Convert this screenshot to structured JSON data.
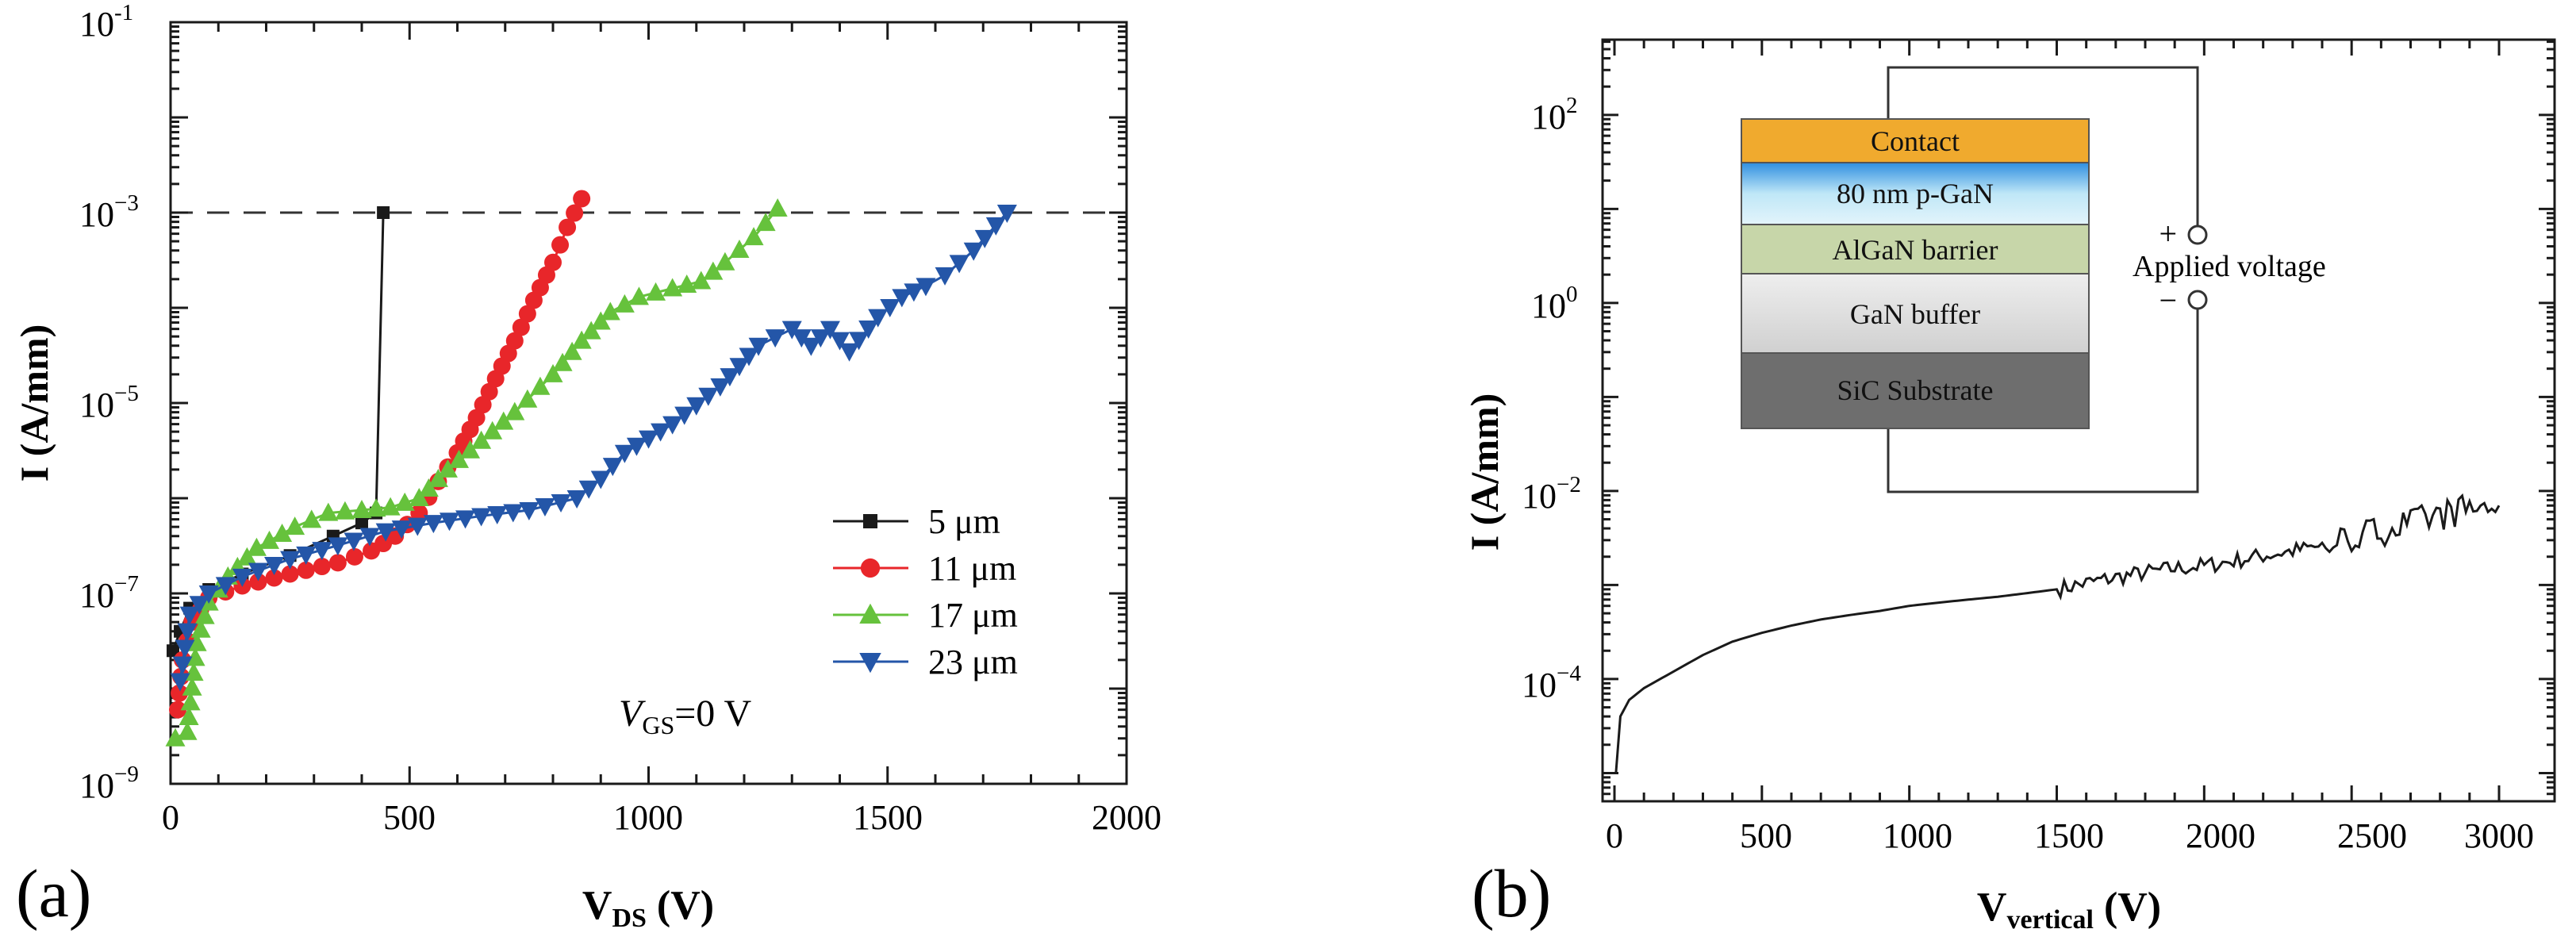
{
  "chart_data": [
    {
      "panel": "(a)",
      "type": "line",
      "xlabel_main": "V",
      "xlabel_sub": "DS",
      "xlabel_unit": " (V)",
      "ylabel": "I (A/mm)",
      "xlim": [
        0,
        2000
      ],
      "ylim_exp": [
        -9,
        -1
      ],
      "yscale": "log",
      "x_ticks": [
        "0",
        "500",
        "1000",
        "1500",
        "2000"
      ],
      "y_ticks": [
        {
          "exp": -1,
          "base": "10",
          "sup": "-1"
        },
        {
          "exp": -3,
          "base": "10",
          "sup": "−3"
        },
        {
          "exp": -5,
          "base": "10",
          "sup": "−5"
        },
        {
          "exp": -7,
          "base": "10",
          "sup": "−7"
        },
        {
          "exp": -9,
          "base": "10",
          "sup": "−9"
        }
      ],
      "reference_line": {
        "y": 0.001,
        "style": "dashed"
      },
      "annotation": {
        "var": "V",
        "sub": "GS",
        "rest": "=0 V"
      },
      "legend_position": "bottom-right",
      "series": [
        {
          "name": "5 μm",
          "color": "#1a1a1a",
          "marker": "square",
          "points": [
            [
              5,
              2.5e-08
            ],
            [
              20,
              4e-08
            ],
            [
              40,
              7e-08
            ],
            [
              80,
              1.1e-07
            ],
            [
              150,
              1.6e-07
            ],
            [
              250,
              2.5e-07
            ],
            [
              340,
              4e-07
            ],
            [
              400,
              5.5e-07
            ],
            [
              430,
              7e-07
            ],
            [
              445,
              0.001
            ]
          ]
        },
        {
          "name": "11 μm",
          "color": "#e8262a",
          "marker": "circle",
          "points": [
            [
              15,
              6e-09
            ],
            [
              25,
              2e-08
            ],
            [
              45,
              5e-08
            ],
            [
              80,
              9e-08
            ],
            [
              150,
              1.2e-07
            ],
            [
              250,
              1.6e-07
            ],
            [
              350,
              2.1e-07
            ],
            [
              420,
              2.8e-07
            ],
            [
              470,
              4e-07
            ],
            [
              520,
              7e-07
            ],
            [
              560,
              1.5e-06
            ],
            [
              600,
              3e-06
            ],
            [
              640,
              7e-06
            ],
            [
              680,
              1.8e-05
            ],
            [
              720,
              4.5e-05
            ],
            [
              760,
              0.00012
            ],
            [
              800,
              0.0003
            ],
            [
              830,
              0.0007
            ],
            [
              860,
              0.0014
            ]
          ]
        },
        {
          "name": "17 μm",
          "color": "#66c23c",
          "marker": "triangle-up",
          "points": [
            [
              10,
              3e-09
            ],
            [
              35,
              3.5e-09
            ],
            [
              55,
              3e-08
            ],
            [
              80,
              8e-08
            ],
            [
              120,
              1.5e-07
            ],
            [
              180,
              3e-07
            ],
            [
              260,
              5e-07
            ],
            [
              330,
              7e-07
            ],
            [
              400,
              7.5e-07
            ],
            [
              460,
              8e-07
            ],
            [
              520,
              1e-06
            ],
            [
              580,
              2e-06
            ],
            [
              650,
              4e-06
            ],
            [
              720,
              8e-06
            ],
            [
              800,
              2e-05
            ],
            [
              860,
              4.5e-05
            ],
            [
              920,
              9e-05
            ],
            [
              980,
              0.00013
            ],
            [
              1050,
              0.00016
            ],
            [
              1110,
              0.00019
            ],
            [
              1160,
              0.0003
            ],
            [
              1220,
              0.00055
            ],
            [
              1270,
              0.0011
            ]
          ]
        },
        {
          "name": "23 μm",
          "color": "#2456a8",
          "marker": "triangle-down",
          "points": [
            [
              20,
              1.2e-08
            ],
            [
              40,
              6e-08
            ],
            [
              80,
              1e-07
            ],
            [
              150,
              1.5e-07
            ],
            [
              250,
              2.3e-07
            ],
            [
              350,
              3.2e-07
            ],
            [
              450,
              4.5e-07
            ],
            [
              550,
              5.5e-07
            ],
            [
              650,
              6.5e-07
            ],
            [
              750,
              7.5e-07
            ],
            [
              850,
              1e-06
            ],
            [
              900,
              1.6e-06
            ],
            [
              950,
              3e-06
            ],
            [
              1050,
              6e-06
            ],
            [
              1150,
              1.5e-05
            ],
            [
              1230,
              4e-05
            ],
            [
              1300,
              6e-05
            ],
            [
              1340,
              4e-05
            ],
            [
              1380,
              6e-05
            ],
            [
              1420,
              3.5e-05
            ],
            [
              1480,
              8e-05
            ],
            [
              1530,
              0.00013
            ],
            [
              1580,
              0.00017
            ],
            [
              1620,
              0.00022
            ],
            [
              1680,
              0.0004
            ],
            [
              1750,
              0.001
            ]
          ]
        }
      ]
    },
    {
      "panel": "(b)",
      "type": "line",
      "xlabel_main": "V",
      "xlabel_sub": "vertical",
      "xlabel_unit": " (V)",
      "ylabel": "I (A/mm)",
      "xlim": [
        0,
        3000
      ],
      "ylim_exp": [
        -5.3,
        2.8
      ],
      "yscale": "log",
      "x_ticks": [
        "0",
        "500",
        "1000",
        "1500",
        "2000",
        "2500",
        "3000"
      ],
      "y_ticks": [
        {
          "exp": 2,
          "base": "10",
          "sup": "2"
        },
        {
          "exp": 0,
          "base": "10",
          "sup": "0"
        },
        {
          "exp": -2,
          "base": "10",
          "sup": "−2"
        },
        {
          "exp": -4,
          "base": "10",
          "sup": "−4"
        }
      ],
      "series": [
        {
          "name": "",
          "color": "#1a1a1a",
          "points": [
            [
              5,
              1e-05
            ],
            [
              20,
              4e-05
            ],
            [
              50,
              6e-05
            ],
            [
              100,
              8e-05
            ],
            [
              200,
              0.00012
            ],
            [
              300,
              0.00018
            ],
            [
              400,
              0.00025
            ],
            [
              500,
              0.00031
            ],
            [
              600,
              0.00037
            ],
            [
              700,
              0.00043
            ],
            [
              800,
              0.00048
            ],
            [
              900,
              0.00053
            ],
            [
              1000,
              0.0006
            ],
            [
              1100,
              0.00065
            ],
            [
              1200,
              0.0007
            ],
            [
              1300,
              0.00075
            ],
            [
              1400,
              0.00082
            ],
            [
              1500,
              0.0009
            ],
            [
              1600,
              0.00105
            ],
            [
              1700,
              0.0012
            ],
            [
              1800,
              0.00135
            ],
            [
              1900,
              0.0015
            ],
            [
              2000,
              0.0016
            ],
            [
              2100,
              0.0018
            ],
            [
              2200,
              0.00205
            ],
            [
              2300,
              0.0023
            ],
            [
              2400,
              0.0026
            ],
            [
              2500,
              0.0032
            ],
            [
              2600,
              0.0038
            ],
            [
              2700,
              0.0045
            ],
            [
              2800,
              0.0055
            ],
            [
              2900,
              0.0065
            ],
            [
              3000,
              0.007
            ]
          ]
        }
      ],
      "inset": {
        "layers": [
          {
            "label": "Contact",
            "color": "#f0aa2e"
          },
          {
            "label": "80 nm p-GaN",
            "color": "gradient-blue"
          },
          {
            "label": "AlGaN barrier",
            "color": "#c7d6a9"
          },
          {
            "label": "GaN buffer",
            "color": "gradient-grey"
          },
          {
            "label": "SiC Substrate",
            "color": "#707070"
          }
        ],
        "terminal_plus": "+",
        "terminal_minus": "−",
        "voltage_label": "Applied voltage"
      }
    }
  ]
}
